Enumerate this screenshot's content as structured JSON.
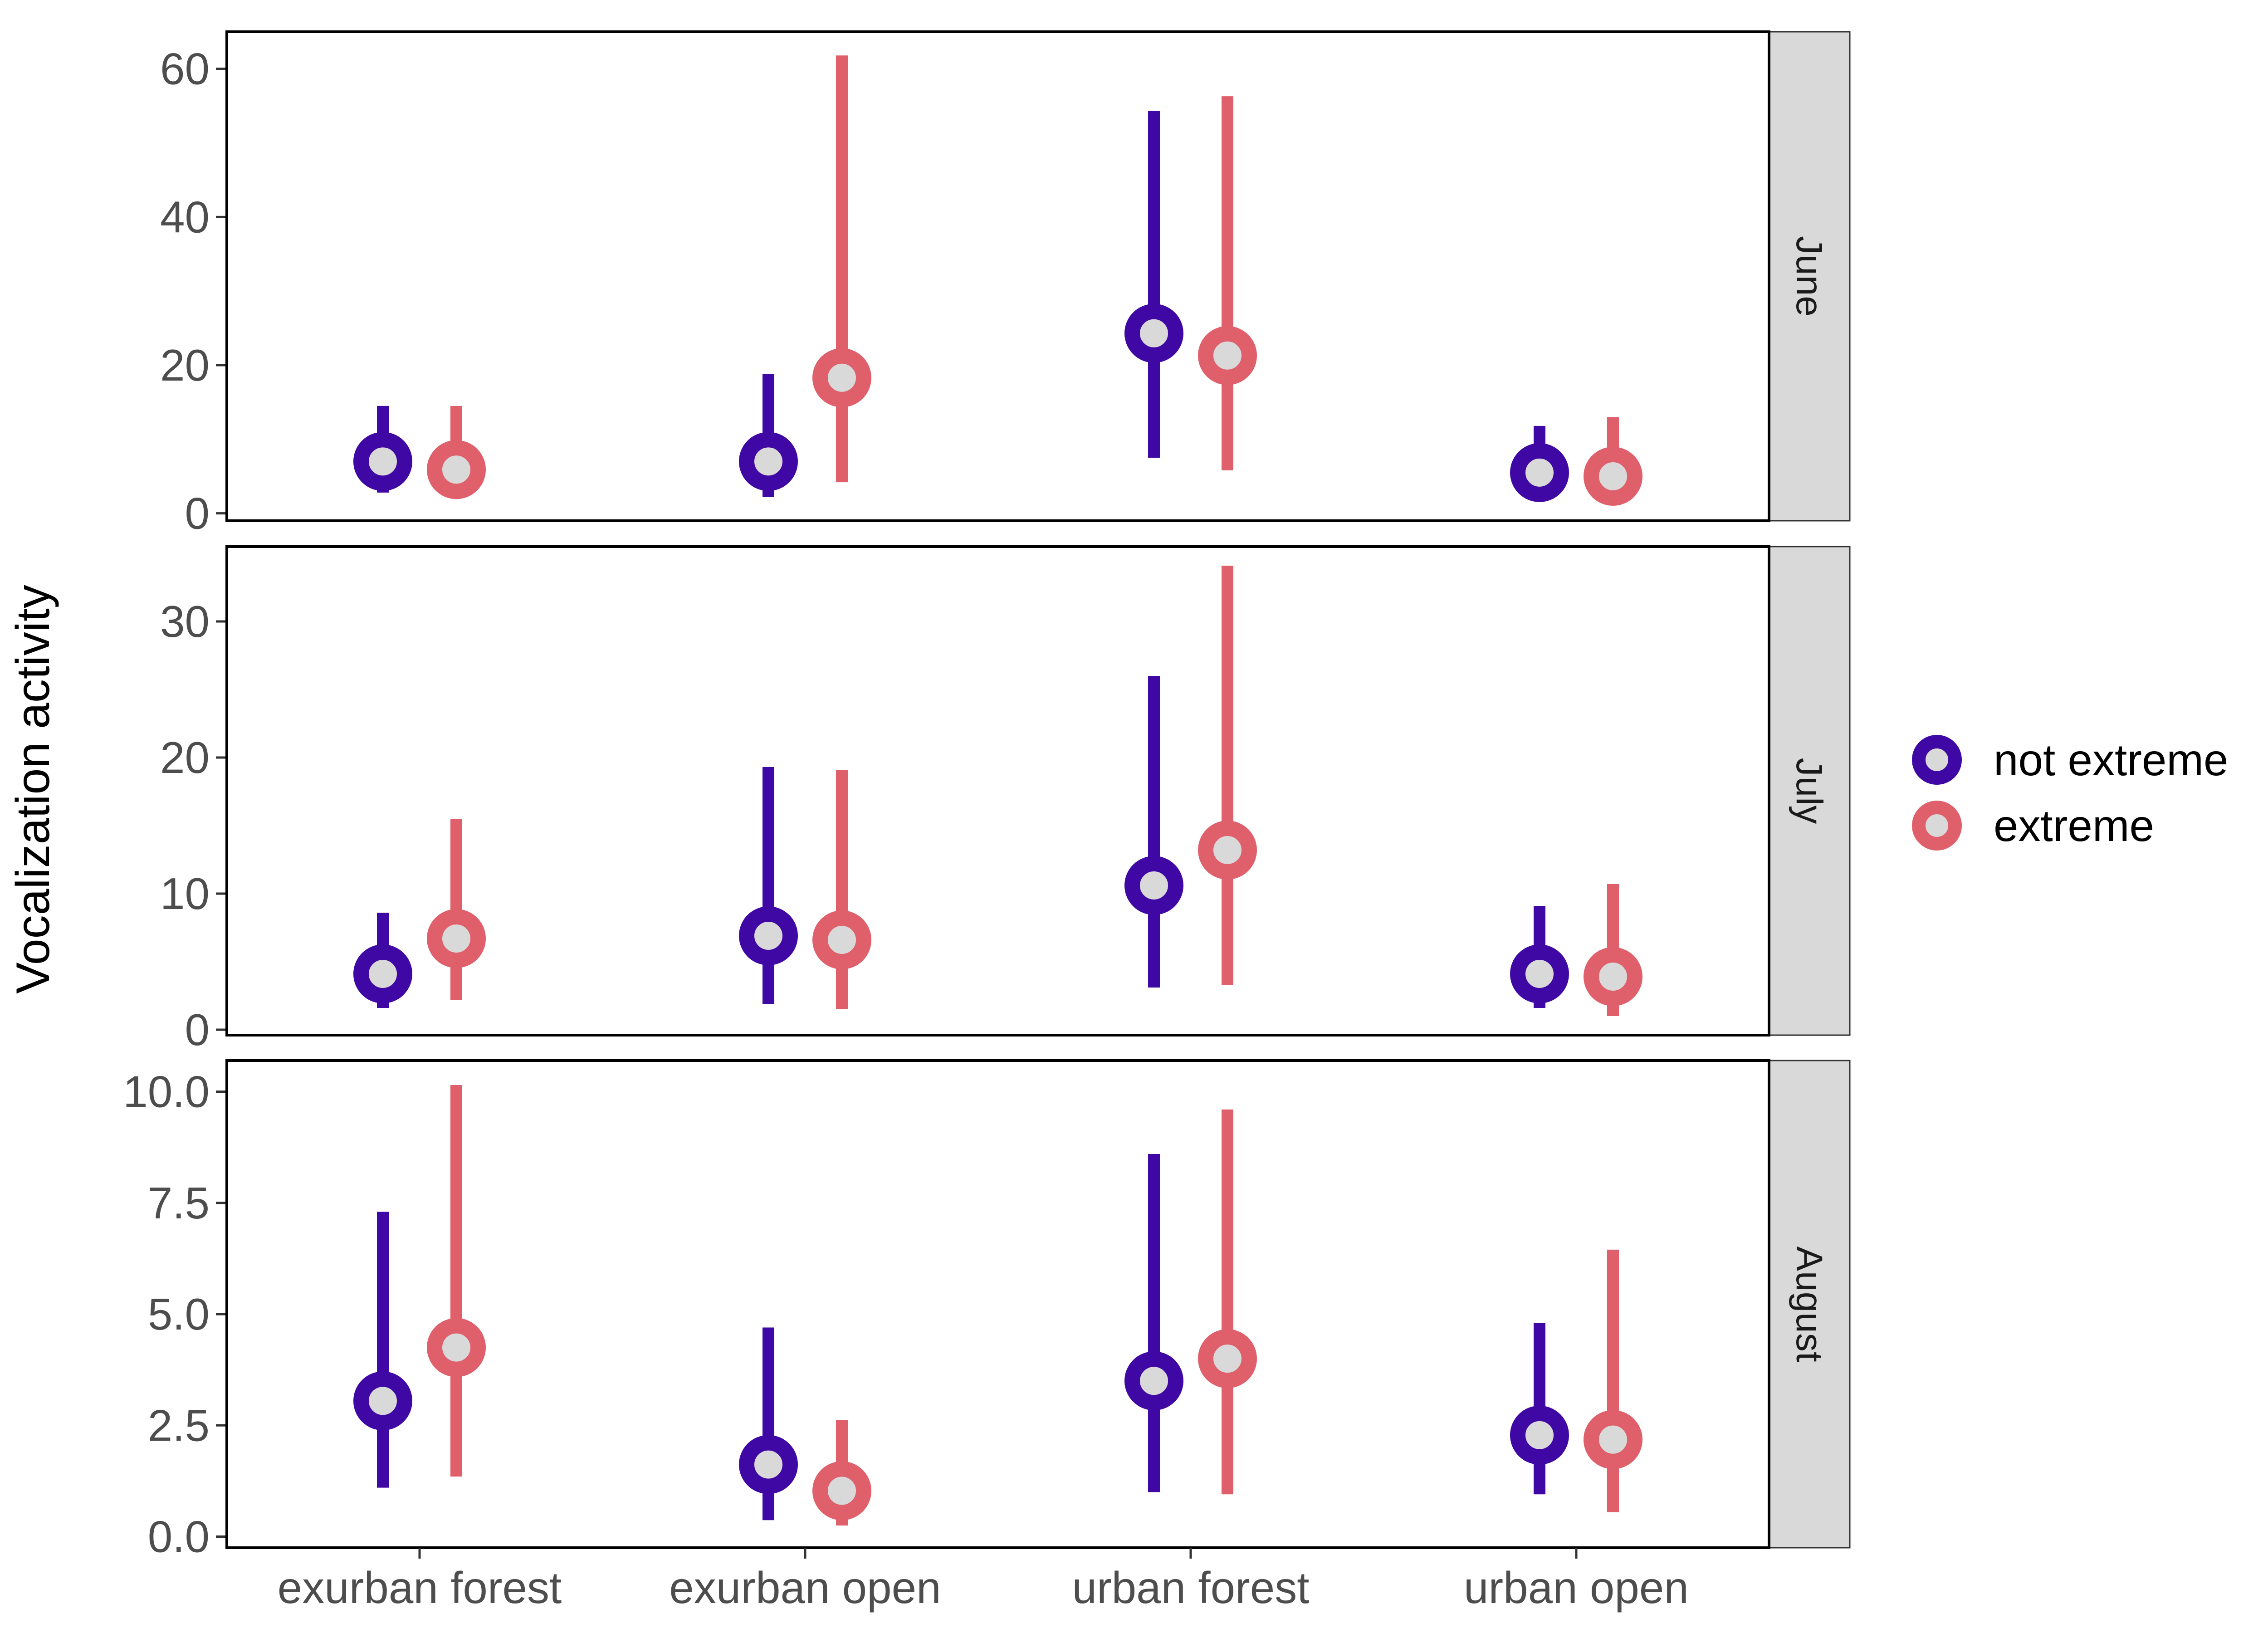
{
  "chart_data": {
    "type": "pointrange",
    "ylabel": "Vocalization activity",
    "xlabel": "",
    "categories": [
      "exurban forest",
      "exurban open",
      "urban forest",
      "urban open"
    ],
    "legend": {
      "position": "right",
      "entries": [
        {
          "name": "not extreme",
          "color": "#3f07a3"
        },
        {
          "name": "extreme",
          "color": "#df5f6b"
        }
      ]
    },
    "point_fill_color": "#d9d9d9",
    "grid": false,
    "panels": [
      {
        "label": "June",
        "ylim": [
          -1,
          65
        ],
        "yticks": [
          0,
          20,
          40,
          60
        ],
        "ytick_labels": [
          "0",
          "20",
          "40",
          "60"
        ],
        "series": [
          {
            "name": "not extreme",
            "estimate": [
              7.0,
              7.0,
              24.3,
              5.5
            ],
            "lower": [
              2.8,
              2.2,
              7.5,
              2.4
            ],
            "upper": [
              14.5,
              18.8,
              54.3,
              11.8
            ]
          },
          {
            "name": "extreme",
            "estimate": [
              5.9,
              18.3,
              21.3,
              5.0
            ],
            "lower": [
              2.0,
              4.2,
              5.8,
              1.8
            ],
            "upper": [
              14.5,
              61.8,
              56.3,
              13.0
            ]
          }
        ]
      },
      {
        "label": "July",
        "ylim": [
          -0.4,
          35.5
        ],
        "yticks": [
          0,
          10,
          20,
          30
        ],
        "ytick_labels": [
          "0",
          "10",
          "20",
          "30"
        ],
        "series": [
          {
            "name": "not extreme",
            "estimate": [
              4.1,
              6.9,
              10.6,
              4.1
            ],
            "lower": [
              1.6,
              1.9,
              3.1,
              1.6
            ],
            "upper": [
              8.6,
              19.3,
              26.0,
              9.1
            ]
          },
          {
            "name": "extreme",
            "estimate": [
              6.7,
              6.6,
              13.2,
              3.9
            ],
            "lower": [
              2.2,
              1.5,
              3.3,
              1.0
            ],
            "upper": [
              15.5,
              19.1,
              34.1,
              10.7
            ]
          }
        ]
      },
      {
        "label": "August",
        "ylim": [
          -0.25,
          10.7
        ],
        "yticks": [
          0.0,
          2.5,
          5.0,
          7.5,
          10.0
        ],
        "ytick_labels": [
          "0.0",
          "2.5",
          "5.0",
          "7.5",
          "10.0"
        ],
        "series": [
          {
            "name": "not extreme",
            "estimate": [
              3.05,
              1.62,
              3.5,
              2.28
            ],
            "lower": [
              1.1,
              0.37,
              1.0,
              0.95
            ],
            "upper": [
              7.3,
              4.7,
              8.6,
              4.8
            ]
          },
          {
            "name": "extreme",
            "estimate": [
              4.25,
              1.03,
              4.0,
              2.18
            ],
            "lower": [
              1.35,
              0.25,
              0.95,
              0.55
            ],
            "upper": [
              10.15,
              2.62,
              9.6,
              6.45
            ]
          }
        ]
      }
    ]
  }
}
